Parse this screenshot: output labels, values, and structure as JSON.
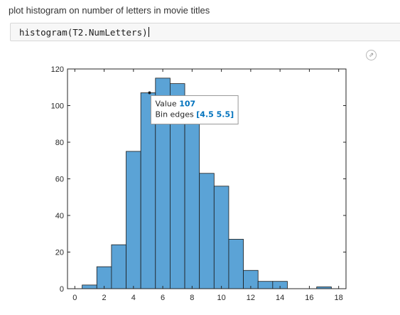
{
  "comment": "plot histogram on number of letters in movie titles",
  "code": {
    "text": "histogram(T2.NumLetters)"
  },
  "toolbar": {
    "export_icon": "export-arrow-icon",
    "export_glyph": "⇗"
  },
  "colors": {
    "bar_fill": "#5ba3d6",
    "bar_edge": "#1b1b1b",
    "axis": "#262626",
    "tip_value": "#0072bd"
  },
  "chart_data": {
    "type": "bar",
    "title": "",
    "xlabel": "",
    "ylabel": "",
    "xlim": [
      -0.5,
      18.5
    ],
    "ylim": [
      0,
      120
    ],
    "xticks": [
      0,
      2,
      4,
      6,
      8,
      10,
      12,
      14,
      16,
      18
    ],
    "yticks": [
      0,
      20,
      40,
      60,
      80,
      100,
      120
    ],
    "bin_edges": [
      0.5,
      1.5,
      2.5,
      3.5,
      4.5,
      5.5,
      6.5,
      7.5,
      8.5,
      9.5,
      10.5,
      11.5,
      12.5,
      13.5,
      14.5,
      15.5,
      16.5,
      17.5
    ],
    "values": [
      2,
      12,
      24,
      75,
      107,
      115,
      112,
      90,
      63,
      56,
      27,
      10,
      4,
      4,
      0,
      0,
      1
    ],
    "datatip": {
      "bin_index": 4,
      "value_label": "Value",
      "value": "107",
      "edges_label": "Bin edges",
      "edges": "[4.5 5.5]"
    }
  }
}
